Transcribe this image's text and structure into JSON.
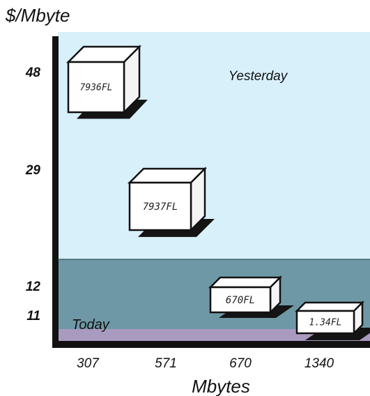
{
  "chart_data": {
    "type": "scatter",
    "ylabel": "$/Mbyte",
    "xlabel": "Mbytes",
    "y_ticks": [
      "48",
      "29",
      "12",
      "11"
    ],
    "x_ticks": [
      "307",
      "571",
      "670",
      "1340"
    ],
    "regions": {
      "upper": "Yesterday",
      "lower": "Today"
    },
    "points": [
      {
        "label": "7936FL",
        "x": 307,
        "y": 48,
        "era": "Yesterday"
      },
      {
        "label": "7937FL",
        "x": 571,
        "y": 29,
        "era": "Yesterday"
      },
      {
        "label": "670FL",
        "x": 670,
        "y": 12,
        "era": "Today"
      },
      {
        "label": "1.34FL",
        "x": 1340,
        "y": 11,
        "era": "Today"
      }
    ]
  },
  "colors": {
    "yesterday_region": "#d8f0fa",
    "today_region": "#6e98a6",
    "today_band": "#a99abf",
    "axis": "#111111",
    "box_face": "#ffffff",
    "box_shadow": "#141414"
  }
}
